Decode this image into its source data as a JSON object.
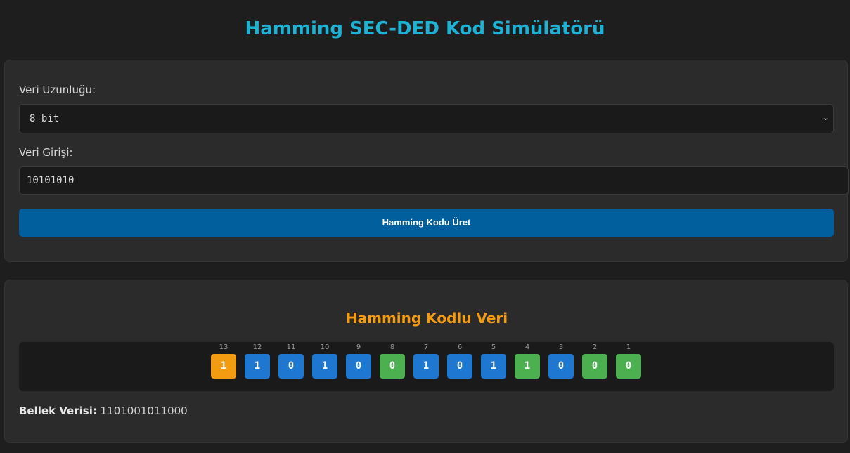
{
  "page": {
    "title": "Hamming SEC-DED Kod Simülatörü"
  },
  "form": {
    "length_label": "Veri Uzunluğu:",
    "length_selected": "8 bit",
    "input_label": "Veri Girişi:",
    "input_value": "10101010",
    "submit_label": "Hamming Kodu Üret"
  },
  "result": {
    "title": "Hamming Kodlu Veri",
    "bits": [
      {
        "index": "13",
        "value": "1",
        "type": "overall-parity",
        "color": "#f39c12"
      },
      {
        "index": "12",
        "value": "1",
        "type": "data",
        "color": "#1e78d2"
      },
      {
        "index": "11",
        "value": "0",
        "type": "data",
        "color": "#1e78d2"
      },
      {
        "index": "10",
        "value": "1",
        "type": "data",
        "color": "#1e78d2"
      },
      {
        "index": "9",
        "value": "0",
        "type": "data",
        "color": "#1e78d2"
      },
      {
        "index": "8",
        "value": "0",
        "type": "parity",
        "color": "#4caf50"
      },
      {
        "index": "7",
        "value": "1",
        "type": "data",
        "color": "#1e78d2"
      },
      {
        "index": "6",
        "value": "0",
        "type": "data",
        "color": "#1e78d2"
      },
      {
        "index": "5",
        "value": "1",
        "type": "data",
        "color": "#1e78d2"
      },
      {
        "index": "4",
        "value": "1",
        "type": "parity",
        "color": "#4caf50"
      },
      {
        "index": "3",
        "value": "0",
        "type": "data",
        "color": "#1e78d2"
      },
      {
        "index": "2",
        "value": "0",
        "type": "parity",
        "color": "#4caf50"
      },
      {
        "index": "1",
        "value": "0",
        "type": "parity",
        "color": "#4caf50"
      }
    ],
    "memory_label": "Bellek Verisi:",
    "memory_value": "1101001011000"
  }
}
